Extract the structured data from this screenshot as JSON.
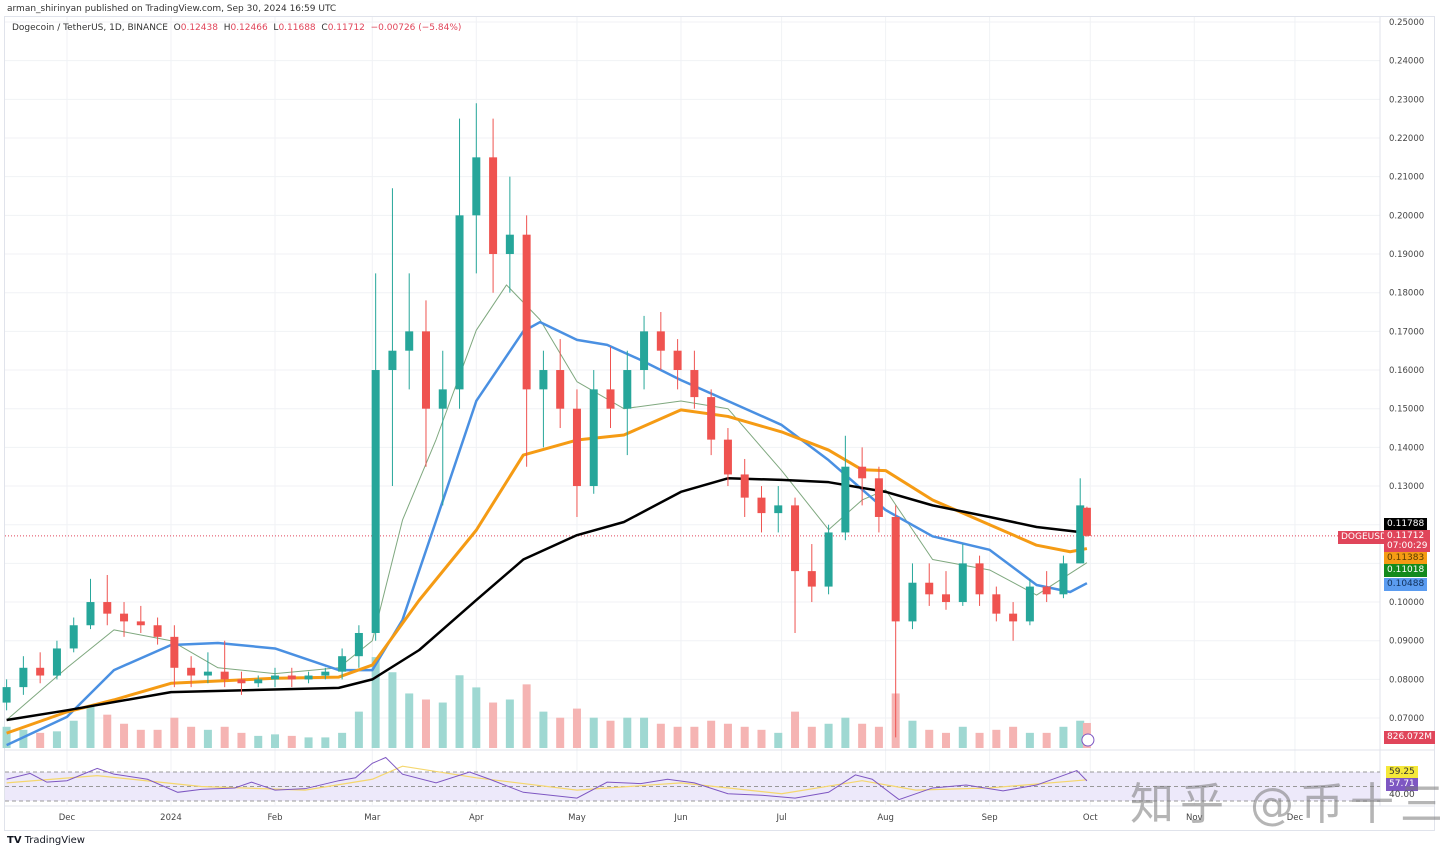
{
  "published": "arman_shirinyan published on TradingView.com, Sep 30, 2024 16:59 UTC",
  "legend": {
    "symbol": "Dogecoin / TetherUS, 1D, BINANCE",
    "o_label": "O",
    "o": "0.12438",
    "h_label": "H",
    "h": "0.12466",
    "l_label": "L",
    "l": "0.11688",
    "c_label": "C",
    "c": "0.11712",
    "change": "−0.00726 (−5.84%)"
  },
  "labels": {
    "ma200": "0.11788",
    "ticker": "DOGEUSDT",
    "last": "0.11712",
    "countdown": "07:00:29",
    "ma100": "0.11383",
    "ma20": "0.11018",
    "ma50": "0.10488",
    "volume": "826.072M",
    "rsi_ma": "59.25",
    "rsi": "57.71",
    "rsi_low": "40.00"
  },
  "watermark": "知乎 @币十三",
  "footer": {
    "brand": "TradingView"
  },
  "colors": {
    "up": "#26a69a",
    "down": "#ef5350",
    "ma20": "#7fa87f",
    "ma50": "#4a90e2",
    "ma100": "#f59b14",
    "ma200": "#000000",
    "rsi": "#7e57c2",
    "rsi_ma": "#f5d76e"
  },
  "chart_data": {
    "type": "candlestick",
    "ylim": [
      0.065,
      0.25
    ],
    "y_ticks": [
      "0.25000",
      "0.24000",
      "0.23000",
      "0.22000",
      "0.21000",
      "0.20000",
      "0.19000",
      "0.18000",
      "0.17000",
      "0.16000",
      "0.15000",
      "0.14000",
      "0.13000",
      "0.12000",
      "0.11000",
      "0.10000",
      "0.09000",
      "0.08000",
      "0.07000"
    ],
    "x_ticks": [
      [
        "2023-12-01",
        "Dec"
      ],
      [
        "2024-01-01",
        "2024"
      ],
      [
        "2024-02-01",
        "Feb"
      ],
      [
        "2024-03-01",
        "Mar"
      ],
      [
        "2024-04-01",
        "Apr"
      ],
      [
        "2024-05-01",
        "May"
      ],
      [
        "2024-06-01",
        "Jun"
      ],
      [
        "2024-07-01",
        "Jul"
      ],
      [
        "2024-08-01",
        "Aug"
      ],
      [
        "2024-09-01",
        "Sep"
      ],
      [
        "2024-10-01",
        "Oct"
      ],
      [
        "2024-11-01",
        "Nov"
      ],
      [
        "2024-12-01",
        "Dec"
      ]
    ],
    "candle_fields": [
      "date",
      "open",
      "high",
      "low",
      "close",
      "volume_M"
    ],
    "candles": [
      [
        "2023-11-13",
        0.074,
        0.08,
        0.072,
        0.078,
        700
      ],
      [
        "2023-11-18",
        0.078,
        0.086,
        0.076,
        0.083,
        600
      ],
      [
        "2023-11-23",
        0.083,
        0.087,
        0.079,
        0.081,
        500
      ],
      [
        "2023-11-28",
        0.081,
        0.09,
        0.08,
        0.088,
        550
      ],
      [
        "2023-12-03",
        0.088,
        0.096,
        0.087,
        0.094,
        900
      ],
      [
        "2023-12-08",
        0.094,
        0.106,
        0.093,
        0.1,
        1400
      ],
      [
        "2023-12-13",
        0.1,
        0.107,
        0.094,
        0.097,
        1100
      ],
      [
        "2023-12-18",
        0.097,
        0.1,
        0.091,
        0.095,
        800
      ],
      [
        "2023-12-23",
        0.095,
        0.099,
        0.092,
        0.094,
        600
      ],
      [
        "2023-12-28",
        0.094,
        0.096,
        0.089,
        0.091,
        600
      ],
      [
        "2024-01-02",
        0.091,
        0.094,
        0.078,
        0.083,
        1000
      ],
      [
        "2024-01-07",
        0.083,
        0.086,
        0.078,
        0.081,
        700
      ],
      [
        "2024-01-12",
        0.081,
        0.087,
        0.079,
        0.082,
        600
      ],
      [
        "2024-01-17",
        0.082,
        0.09,
        0.078,
        0.08,
        700
      ],
      [
        "2024-01-22",
        0.08,
        0.082,
        0.076,
        0.079,
        500
      ],
      [
        "2024-01-27",
        0.079,
        0.081,
        0.078,
        0.08,
        400
      ],
      [
        "2024-02-01",
        0.08,
        0.083,
        0.078,
        0.081,
        450
      ],
      [
        "2024-02-06",
        0.081,
        0.083,
        0.078,
        0.08,
        400
      ],
      [
        "2024-02-11",
        0.08,
        0.082,
        0.079,
        0.081,
        350
      ],
      [
        "2024-02-16",
        0.081,
        0.083,
        0.08,
        0.082,
        350
      ],
      [
        "2024-02-21",
        0.082,
        0.088,
        0.08,
        0.086,
        500
      ],
      [
        "2024-02-26",
        0.086,
        0.094,
        0.083,
        0.092,
        1200
      ],
      [
        "2024-03-02",
        0.092,
        0.185,
        0.09,
        0.16,
        3000
      ],
      [
        "2024-03-07",
        0.16,
        0.207,
        0.13,
        0.165,
        2500
      ],
      [
        "2024-03-12",
        0.165,
        0.185,
        0.155,
        0.17,
        1800
      ],
      [
        "2024-03-17",
        0.17,
        0.178,
        0.135,
        0.15,
        1600
      ],
      [
        "2024-03-22",
        0.15,
        0.165,
        0.125,
        0.155,
        1500
      ],
      [
        "2024-03-27",
        0.155,
        0.225,
        0.15,
        0.2,
        2400
      ],
      [
        "2024-04-01",
        0.2,
        0.229,
        0.185,
        0.215,
        2000
      ],
      [
        "2024-04-06",
        0.215,
        0.225,
        0.18,
        0.19,
        1500
      ],
      [
        "2024-04-11",
        0.19,
        0.21,
        0.18,
        0.195,
        1600
      ],
      [
        "2024-04-16",
        0.195,
        0.2,
        0.135,
        0.155,
        2100
      ],
      [
        "2024-04-21",
        0.155,
        0.165,
        0.14,
        0.16,
        1200
      ],
      [
        "2024-04-26",
        0.16,
        0.168,
        0.145,
        0.15,
        1000
      ],
      [
        "2024-05-01",
        0.15,
        0.155,
        0.122,
        0.13,
        1300
      ],
      [
        "2024-05-06",
        0.13,
        0.16,
        0.128,
        0.155,
        1000
      ],
      [
        "2024-05-11",
        0.155,
        0.166,
        0.145,
        0.15,
        900
      ],
      [
        "2024-05-16",
        0.15,
        0.165,
        0.138,
        0.16,
        1000
      ],
      [
        "2024-05-21",
        0.16,
        0.174,
        0.155,
        0.17,
        1000
      ],
      [
        "2024-05-26",
        0.17,
        0.175,
        0.16,
        0.165,
        800
      ],
      [
        "2024-05-31",
        0.165,
        0.168,
        0.155,
        0.16,
        700
      ],
      [
        "2024-06-05",
        0.16,
        0.165,
        0.15,
        0.153,
        700
      ],
      [
        "2024-06-10",
        0.153,
        0.155,
        0.138,
        0.142,
        900
      ],
      [
        "2024-06-15",
        0.142,
        0.145,
        0.13,
        0.133,
        800
      ],
      [
        "2024-06-20",
        0.133,
        0.137,
        0.122,
        0.127,
        700
      ],
      [
        "2024-06-25",
        0.127,
        0.13,
        0.118,
        0.123,
        600
      ],
      [
        "2024-06-30",
        0.123,
        0.13,
        0.118,
        0.125,
        500
      ],
      [
        "2024-07-05",
        0.125,
        0.127,
        0.092,
        0.108,
        1200
      ],
      [
        "2024-07-10",
        0.108,
        0.115,
        0.1,
        0.104,
        700
      ],
      [
        "2024-07-15",
        0.104,
        0.12,
        0.102,
        0.118,
        800
      ],
      [
        "2024-07-20",
        0.118,
        0.143,
        0.116,
        0.135,
        1000
      ],
      [
        "2024-07-25",
        0.135,
        0.14,
        0.125,
        0.132,
        800
      ],
      [
        "2024-07-30",
        0.132,
        0.135,
        0.118,
        0.122,
        700
      ],
      [
        "2024-08-04",
        0.122,
        0.125,
        0.065,
        0.095,
        1800
      ],
      [
        "2024-08-09",
        0.095,
        0.11,
        0.093,
        0.105,
        900
      ],
      [
        "2024-08-14",
        0.105,
        0.11,
        0.099,
        0.102,
        600
      ],
      [
        "2024-08-19",
        0.102,
        0.108,
        0.098,
        0.1,
        500
      ],
      [
        "2024-08-24",
        0.1,
        0.115,
        0.099,
        0.11,
        700
      ],
      [
        "2024-08-29",
        0.11,
        0.112,
        0.099,
        0.102,
        500
      ],
      [
        "2024-09-03",
        0.102,
        0.104,
        0.095,
        0.097,
        600
      ],
      [
        "2024-09-08",
        0.097,
        0.1,
        0.09,
        0.095,
        700
      ],
      [
        "2024-09-13",
        0.095,
        0.106,
        0.094,
        0.104,
        500
      ],
      [
        "2024-09-18",
        0.104,
        0.108,
        0.1,
        0.102,
        500
      ],
      [
        "2024-09-23",
        0.102,
        0.112,
        0.101,
        0.11,
        700
      ],
      [
        "2024-09-28",
        0.11,
        0.132,
        0.11,
        0.125,
        900
      ],
      [
        "2024-09-30",
        0.12438,
        0.12466,
        0.11688,
        0.11712,
        826
      ]
    ],
    "moving_averages": {
      "ma200": [
        [
          "2023-11-13",
          0.0695
        ],
        [
          "2023-12-01",
          0.072
        ],
        [
          "2024-01-01",
          0.0767
        ],
        [
          "2024-02-20",
          0.0778
        ],
        [
          "2024-03-01",
          0.08
        ],
        [
          "2024-03-15",
          0.0876
        ],
        [
          "2024-04-01",
          0.1005
        ],
        [
          "2024-04-15",
          0.111
        ],
        [
          "2024-05-01",
          0.1173
        ],
        [
          "2024-05-15",
          0.1207
        ],
        [
          "2024-06-01",
          0.1285
        ],
        [
          "2024-06-15",
          0.132
        ],
        [
          "2024-07-01",
          0.1316
        ],
        [
          "2024-07-15",
          0.131
        ],
        [
          "2024-08-01",
          0.1285
        ],
        [
          "2024-08-15",
          0.125
        ],
        [
          "2024-09-01",
          0.122
        ],
        [
          "2024-09-15",
          0.1194
        ],
        [
          "2024-09-30",
          0.11788
        ]
      ],
      "ma100": [
        [
          "2023-11-13",
          0.0661
        ],
        [
          "2023-12-01",
          0.0716
        ],
        [
          "2023-12-15",
          0.0747
        ],
        [
          "2024-01-01",
          0.079
        ],
        [
          "2024-02-01",
          0.0803
        ],
        [
          "2024-02-20",
          0.0806
        ],
        [
          "2024-03-01",
          0.0837
        ],
        [
          "2024-03-15",
          0.1005
        ],
        [
          "2024-04-01",
          0.1186
        ],
        [
          "2024-04-15",
          0.138
        ],
        [
          "2024-05-01",
          0.1419
        ],
        [
          "2024-05-15",
          0.1432
        ],
        [
          "2024-06-01",
          0.1497
        ],
        [
          "2024-06-15",
          0.148
        ],
        [
          "2024-07-01",
          0.144
        ],
        [
          "2024-07-15",
          0.1393
        ],
        [
          "2024-07-25",
          0.1342
        ],
        [
          "2024-08-01",
          0.134
        ],
        [
          "2024-08-15",
          0.1264
        ],
        [
          "2024-09-01",
          0.12
        ],
        [
          "2024-09-15",
          0.1147
        ],
        [
          "2024-09-25",
          0.113
        ],
        [
          "2024-09-30",
          0.11383
        ]
      ],
      "ma50": [
        [
          "2023-11-13",
          0.063
        ],
        [
          "2023-12-01",
          0.0703
        ],
        [
          "2023-12-15",
          0.0824
        ],
        [
          "2024-01-01",
          0.0889
        ],
        [
          "2024-01-15",
          0.0894
        ],
        [
          "2024-02-01",
          0.088
        ],
        [
          "2024-02-20",
          0.0824
        ],
        [
          "2024-03-01",
          0.0824
        ],
        [
          "2024-03-10",
          0.0954
        ],
        [
          "2024-03-20",
          0.121
        ],
        [
          "2024-04-01",
          0.152
        ],
        [
          "2024-04-15",
          0.17
        ],
        [
          "2024-04-20",
          0.1724
        ],
        [
          "2024-05-01",
          0.1678
        ],
        [
          "2024-05-10",
          0.1665
        ],
        [
          "2024-05-20",
          0.1626
        ],
        [
          "2024-06-01",
          0.1574
        ],
        [
          "2024-06-15",
          0.152
        ],
        [
          "2024-07-01",
          0.1458
        ],
        [
          "2024-07-15",
          0.1367
        ],
        [
          "2024-08-01",
          0.1238
        ],
        [
          "2024-08-15",
          0.117
        ],
        [
          "2024-09-01",
          0.1135
        ],
        [
          "2024-09-15",
          0.1044
        ],
        [
          "2024-09-25",
          0.1026
        ],
        [
          "2024-09-30",
          0.10488
        ]
      ],
      "ma20": [
        [
          "2023-11-13",
          0.0695
        ],
        [
          "2023-12-01",
          0.083
        ],
        [
          "2023-12-15",
          0.0928
        ],
        [
          "2024-01-01",
          0.09
        ],
        [
          "2024-01-15",
          0.083
        ],
        [
          "2024-02-01",
          0.0815
        ],
        [
          "2024-02-20",
          0.083
        ],
        [
          "2024-03-01",
          0.09
        ],
        [
          "2024-03-10",
          0.1212
        ],
        [
          "2024-03-20",
          0.142
        ],
        [
          "2024-04-01",
          0.1703
        ],
        [
          "2024-04-10",
          0.182
        ],
        [
          "2024-04-20",
          0.173
        ],
        [
          "2024-05-01",
          0.157
        ],
        [
          "2024-05-15",
          0.15
        ],
        [
          "2024-06-01",
          0.152
        ],
        [
          "2024-06-15",
          0.15
        ],
        [
          "2024-07-01",
          0.134
        ],
        [
          "2024-07-15",
          0.1187
        ],
        [
          "2024-07-25",
          0.1264
        ],
        [
          "2024-08-01",
          0.129
        ],
        [
          "2024-08-15",
          0.111
        ],
        [
          "2024-09-01",
          0.1083
        ],
        [
          "2024-09-15",
          0.1018
        ],
        [
          "2024-09-30",
          0.11018
        ]
      ]
    },
    "rsi": {
      "levels": [
        70,
        50,
        30
      ],
      "values": [
        [
          "2023-11-13",
          60
        ],
        [
          "2023-11-20",
          68
        ],
        [
          "2023-11-25",
          56
        ],
        [
          "2023-12-01",
          58
        ],
        [
          "2023-12-10",
          75
        ],
        [
          "2023-12-15",
          67
        ],
        [
          "2023-12-25",
          60
        ],
        [
          "2024-01-03",
          42
        ],
        [
          "2024-01-10",
          46
        ],
        [
          "2024-01-20",
          48
        ],
        [
          "2024-01-25",
          56
        ],
        [
          "2024-02-01",
          45
        ],
        [
          "2024-02-10",
          47
        ],
        [
          "2024-02-20",
          58
        ],
        [
          "2024-02-25",
          62
        ],
        [
          "2024-03-01",
          82
        ],
        [
          "2024-03-05",
          90
        ],
        [
          "2024-03-10",
          67
        ],
        [
          "2024-03-20",
          55
        ],
        [
          "2024-03-30",
          70
        ],
        [
          "2024-04-05",
          60
        ],
        [
          "2024-04-15",
          42
        ],
        [
          "2024-05-01",
          34
        ],
        [
          "2024-05-10",
          56
        ],
        [
          "2024-05-20",
          54
        ],
        [
          "2024-05-28",
          60
        ],
        [
          "2024-06-05",
          55
        ],
        [
          "2024-06-15",
          40
        ],
        [
          "2024-06-25",
          38
        ],
        [
          "2024-07-05",
          34
        ],
        [
          "2024-07-15",
          42
        ],
        [
          "2024-07-23",
          66
        ],
        [
          "2024-07-28",
          60
        ],
        [
          "2024-08-05",
          32
        ],
        [
          "2024-08-15",
          48
        ],
        [
          "2024-08-25",
          52
        ],
        [
          "2024-09-05",
          44
        ],
        [
          "2024-09-15",
          52
        ],
        [
          "2024-09-27",
          72
        ],
        [
          "2024-09-30",
          57.71
        ]
      ],
      "ma": [
        [
          "2023-11-13",
          55
        ],
        [
          "2023-12-10",
          65
        ],
        [
          "2024-01-10",
          50
        ],
        [
          "2024-02-10",
          45
        ],
        [
          "2024-03-01",
          60
        ],
        [
          "2024-03-10",
          78
        ],
        [
          "2024-04-01",
          62
        ],
        [
          "2024-05-01",
          45
        ],
        [
          "2024-06-01",
          55
        ],
        [
          "2024-07-01",
          40
        ],
        [
          "2024-07-25",
          58
        ],
        [
          "2024-08-10",
          45
        ],
        [
          "2024-09-01",
          48
        ],
        [
          "2024-09-30",
          59.25
        ]
      ]
    }
  }
}
